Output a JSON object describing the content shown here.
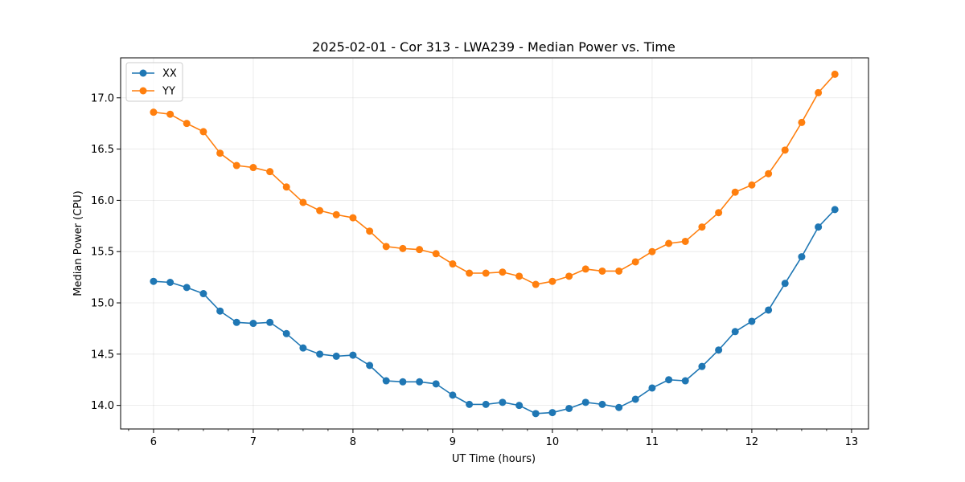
{
  "chart_data": {
    "type": "line",
    "title": "2025-02-01 - Cor 313 - LWA239 - Median Power vs. Time",
    "xlabel": "UT Time (hours)",
    "ylabel": "Median Power (CPU)",
    "xlim": [
      5.67,
      13.17
    ],
    "ylim": [
      13.77,
      17.39
    ],
    "xticks": [
      6,
      7,
      8,
      9,
      10,
      11,
      12,
      13
    ],
    "yticks": [
      14.0,
      14.5,
      15.0,
      15.5,
      16.0,
      16.5,
      17.0
    ],
    "xtick_labels": [
      "6",
      "7",
      "8",
      "9",
      "10",
      "11",
      "12",
      "13"
    ],
    "ytick_labels": [
      "14.0",
      "14.5",
      "15.0",
      "15.5",
      "16.0",
      "16.5",
      "17.0"
    ],
    "grid": true,
    "legend_position": "top-left",
    "x": [
      6.0,
      6.167,
      6.333,
      6.5,
      6.667,
      6.833,
      7.0,
      7.167,
      7.333,
      7.5,
      7.667,
      7.833,
      8.0,
      8.167,
      8.333,
      8.5,
      8.667,
      8.833,
      9.0,
      9.167,
      9.333,
      9.5,
      9.667,
      9.833,
      10.0,
      10.167,
      10.333,
      10.5,
      10.667,
      10.833,
      11.0,
      11.167,
      11.333,
      11.5,
      11.667,
      11.833,
      12.0,
      12.167,
      12.333,
      12.5,
      12.667,
      12.833
    ],
    "series": [
      {
        "name": "XX",
        "color": "#1f77b4",
        "values": [
          15.21,
          15.2,
          15.15,
          15.09,
          14.92,
          14.81,
          14.8,
          14.81,
          14.7,
          14.56,
          14.5,
          14.48,
          14.49,
          14.39,
          14.24,
          14.23,
          14.23,
          14.21,
          14.1,
          14.01,
          14.01,
          14.03,
          14.0,
          13.92,
          13.93,
          13.97,
          14.03,
          14.01,
          13.98,
          14.06,
          14.17,
          14.25,
          14.24,
          14.38,
          14.54,
          14.72,
          14.82,
          14.93,
          15.19,
          15.45,
          15.74,
          15.91
        ]
      },
      {
        "name": "YY",
        "color": "#ff7f0e",
        "values": [
          16.86,
          16.84,
          16.75,
          16.67,
          16.46,
          16.34,
          16.32,
          16.28,
          16.13,
          15.98,
          15.9,
          15.86,
          15.83,
          15.7,
          15.55,
          15.53,
          15.52,
          15.48,
          15.38,
          15.29,
          15.29,
          15.3,
          15.26,
          15.18,
          15.21,
          15.26,
          15.33,
          15.31,
          15.31,
          15.4,
          15.5,
          15.58,
          15.6,
          15.74,
          15.88,
          16.08,
          16.15,
          16.26,
          16.49,
          16.76,
          17.05,
          17.23
        ]
      }
    ]
  }
}
